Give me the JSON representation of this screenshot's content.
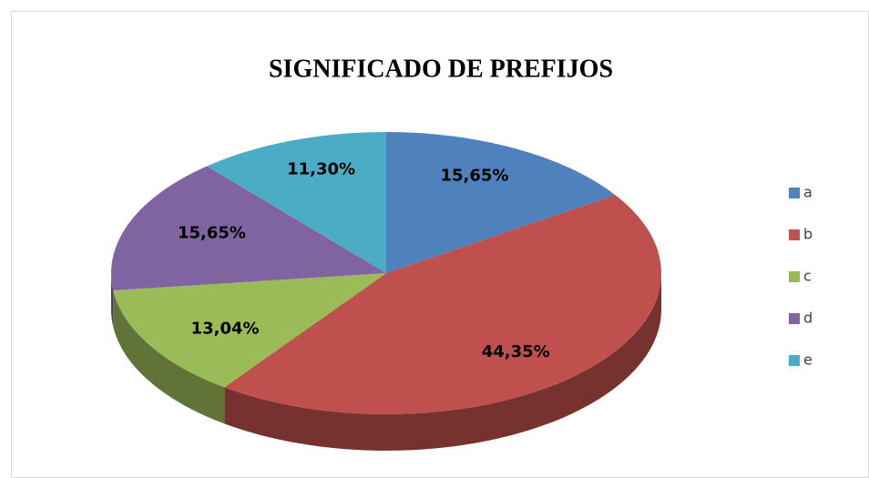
{
  "chart_data": {
    "type": "pie",
    "title": "SIGNIFICADO DE PREFIJOS",
    "categories": [
      "a",
      "b",
      "c",
      "d",
      "e"
    ],
    "values": [
      15.65,
      44.35,
      13.04,
      15.65,
      11.3
    ],
    "value_labels": [
      "15,65%",
      "44,35%",
      "13,04%",
      "15,65%",
      "11,30%"
    ],
    "colors": [
      "#4f81bd",
      "#c0504d",
      "#9bbb59",
      "#8064a2",
      "#4bacc6"
    ],
    "legend": "right"
  }
}
